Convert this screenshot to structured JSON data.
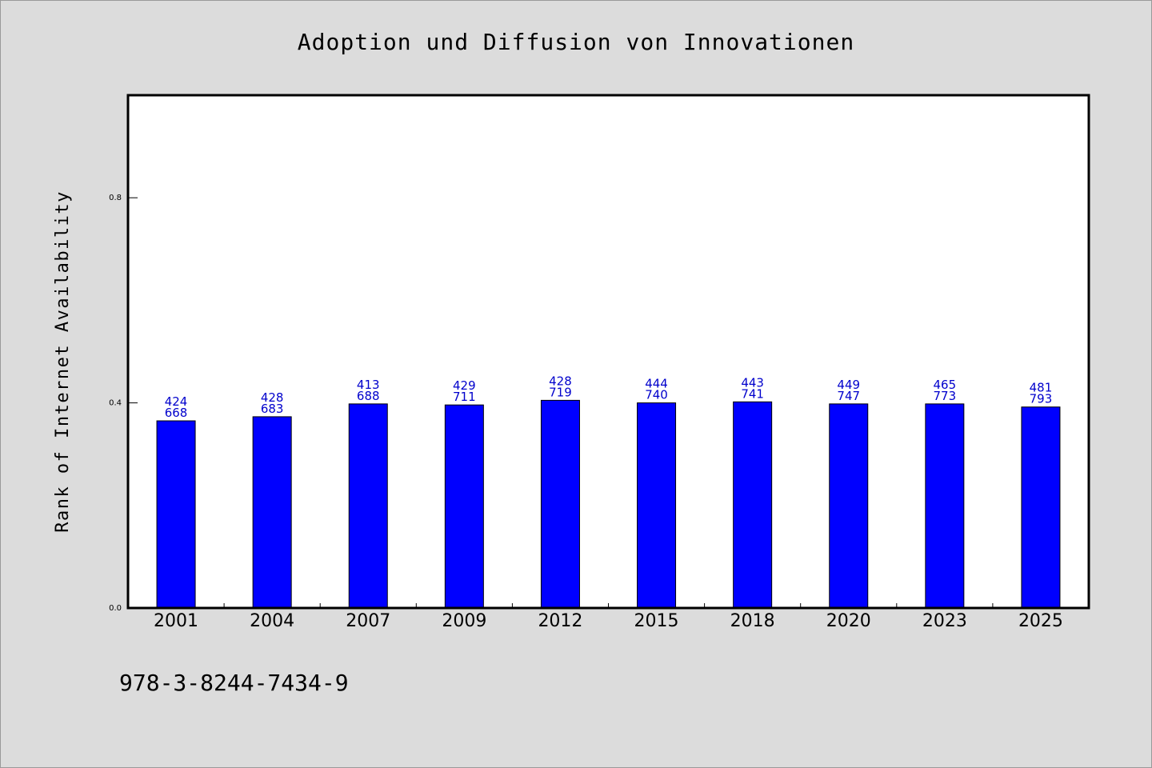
{
  "chart_data": {
    "type": "bar",
    "title": "Adoption und Diffusion von Innovationen",
    "xlabel": "",
    "ylabel": "Rank of Internet Availability",
    "categories": [
      "2001",
      "2004",
      "2007",
      "2009",
      "2012",
      "2015",
      "2018",
      "2020",
      "2023",
      "2025"
    ],
    "values": [
      0.365,
      0.373,
      0.398,
      0.396,
      0.405,
      0.4,
      0.402,
      0.398,
      0.398,
      0.392
    ],
    "data_labels_top": [
      "424",
      "428",
      "413",
      "429",
      "428",
      "444",
      "443",
      "449",
      "465",
      "481"
    ],
    "data_labels_bottom": [
      "668",
      "683",
      "688",
      "711",
      "719",
      "740",
      "741",
      "747",
      "773",
      "793"
    ],
    "ylim": [
      0,
      1.0
    ],
    "yticks": [
      0.0,
      0.4,
      0.8
    ],
    "ytick_labels": [
      "0.0",
      "0.4",
      "0.8"
    ],
    "grid": false,
    "legend": "none",
    "bar_color": "#0000ff",
    "label_color": "#0000cc",
    "footnote": "978-3-8244-7434-9"
  }
}
